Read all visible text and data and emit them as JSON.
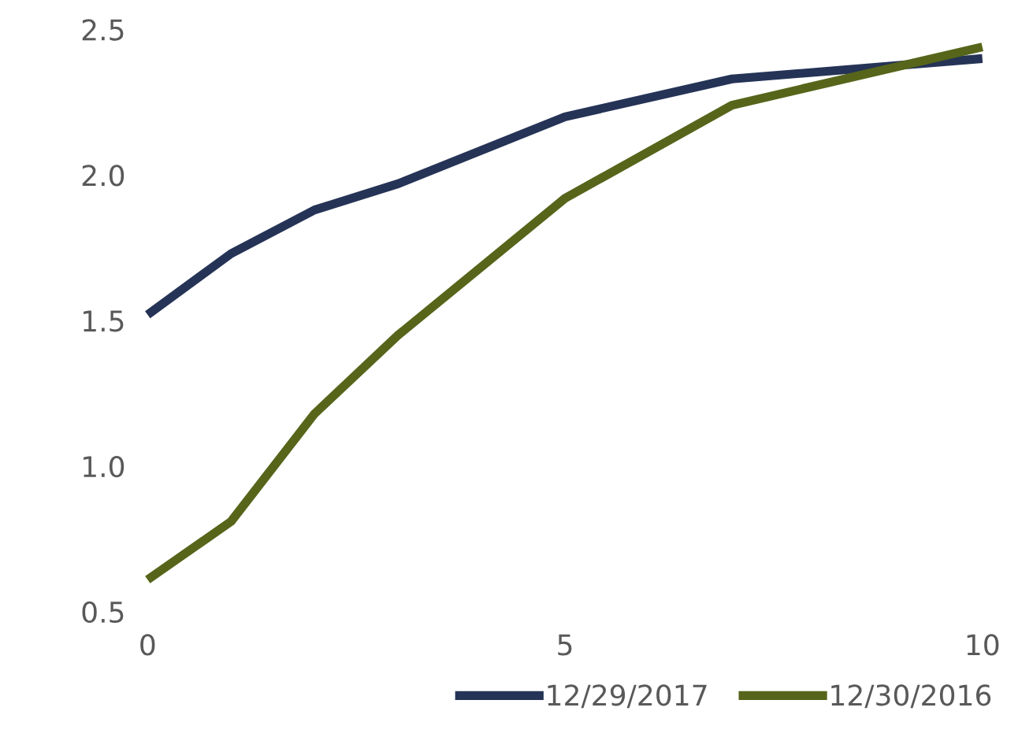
{
  "chart_data": {
    "type": "line",
    "x": [
      0,
      1,
      2,
      3,
      5,
      7,
      10
    ],
    "series": [
      {
        "name": "12/29/2017",
        "color": "#253356",
        "values": [
          1.52,
          1.73,
          1.88,
          1.97,
          2.2,
          2.33,
          2.4
        ]
      },
      {
        "name": "12/30/2016",
        "color": "#56651a",
        "values": [
          0.61,
          0.81,
          1.18,
          1.45,
          1.92,
          2.24,
          2.44
        ]
      }
    ],
    "xlim": [
      0,
      10
    ],
    "xticks": [
      0,
      5,
      10
    ],
    "ylim": [
      0.5,
      2.5
    ],
    "yticks": [
      0.5,
      {
        "value": 1,
        "label": "1.0"
      },
      1.5,
      {
        "value": 2,
        "label": "2.0"
      },
      2.5
    ],
    "grid": false,
    "legend": "bottom right",
    "marker": "none",
    "line_style": "solid"
  }
}
